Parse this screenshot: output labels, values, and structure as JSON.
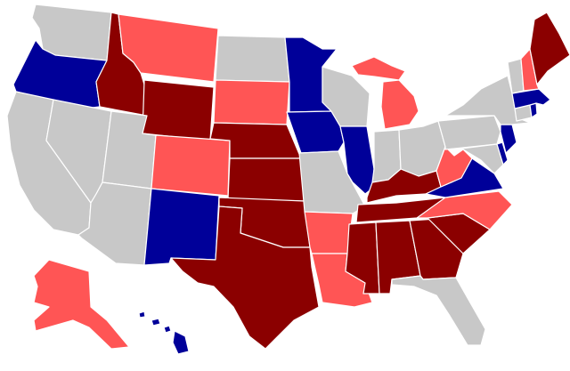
{
  "map": {
    "colors": {
      "safe_republican": "#8b0000",
      "lean_republican": "#ff5555",
      "democratic": "#000099",
      "no_race": "#c8c8c8"
    },
    "states": [
      {
        "id": "WA",
        "category": "no_race"
      },
      {
        "id": "OR",
        "category": "democratic"
      },
      {
        "id": "CA",
        "category": "no_race"
      },
      {
        "id": "NV",
        "category": "no_race"
      },
      {
        "id": "ID",
        "category": "safe_republican"
      },
      {
        "id": "MT",
        "category": "lean_republican"
      },
      {
        "id": "WY",
        "category": "safe_republican"
      },
      {
        "id": "UT",
        "category": "no_race"
      },
      {
        "id": "AZ",
        "category": "no_race"
      },
      {
        "id": "CO",
        "category": "lean_republican"
      },
      {
        "id": "NM",
        "category": "democratic"
      },
      {
        "id": "ND",
        "category": "no_race"
      },
      {
        "id": "SD",
        "category": "lean_republican"
      },
      {
        "id": "NE",
        "category": "safe_republican"
      },
      {
        "id": "KS",
        "category": "safe_republican"
      },
      {
        "id": "OK",
        "category": "safe_republican"
      },
      {
        "id": "TX",
        "category": "safe_republican"
      },
      {
        "id": "MN",
        "category": "democratic"
      },
      {
        "id": "IA",
        "category": "democratic"
      },
      {
        "id": "MO",
        "category": "no_race"
      },
      {
        "id": "AR",
        "category": "lean_republican"
      },
      {
        "id": "LA",
        "category": "lean_republican"
      },
      {
        "id": "WI",
        "category": "no_race"
      },
      {
        "id": "IL",
        "category": "democratic"
      },
      {
        "id": "MI",
        "category": "lean_republican"
      },
      {
        "id": "IN",
        "category": "no_race"
      },
      {
        "id": "OH",
        "category": "no_race"
      },
      {
        "id": "KY",
        "category": "safe_republican"
      },
      {
        "id": "TN",
        "category": "safe_republican"
      },
      {
        "id": "MS",
        "category": "safe_republican"
      },
      {
        "id": "AL",
        "category": "safe_republican"
      },
      {
        "id": "GA",
        "category": "safe_republican"
      },
      {
        "id": "FL",
        "category": "no_race"
      },
      {
        "id": "SC",
        "category": "safe_republican"
      },
      {
        "id": "NC",
        "category": "lean_republican"
      },
      {
        "id": "VA",
        "category": "democratic"
      },
      {
        "id": "WV",
        "category": "lean_republican"
      },
      {
        "id": "PA",
        "category": "no_race"
      },
      {
        "id": "NY",
        "category": "no_race"
      },
      {
        "id": "VT",
        "category": "no_race"
      },
      {
        "id": "NH",
        "category": "lean_republican"
      },
      {
        "id": "ME",
        "category": "safe_republican"
      },
      {
        "id": "MA",
        "category": "democratic"
      },
      {
        "id": "RI",
        "category": "democratic"
      },
      {
        "id": "CT",
        "category": "no_race"
      },
      {
        "id": "NJ",
        "category": "democratic"
      },
      {
        "id": "DE",
        "category": "democratic"
      },
      {
        "id": "MD",
        "category": "no_race"
      },
      {
        "id": "AK",
        "category": "lean_republican"
      },
      {
        "id": "HI",
        "category": "democratic"
      }
    ]
  }
}
